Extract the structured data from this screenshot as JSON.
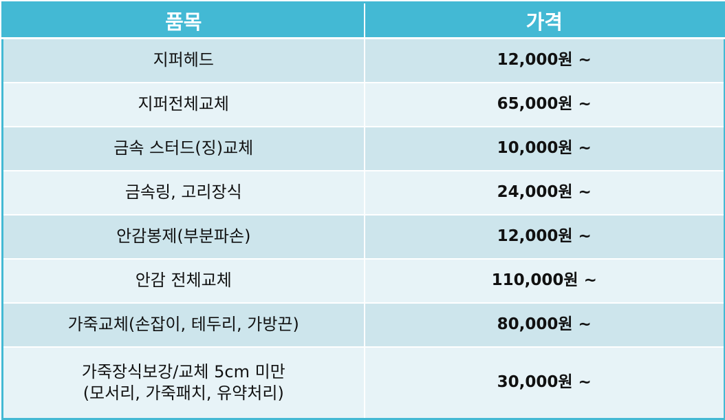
{
  "table": {
    "headers": {
      "item": "품목",
      "price": "가격"
    },
    "rows": [
      {
        "item": [
          "지퍼헤드"
        ],
        "price": "12,000원 ~"
      },
      {
        "item": [
          "지퍼전체교체"
        ],
        "price": "65,000원 ~"
      },
      {
        "item": [
          "금속 스터드(징)교체"
        ],
        "price": "10,000원 ~"
      },
      {
        "item": [
          "금속링, 고리장식"
        ],
        "price": "24,000원 ~"
      },
      {
        "item": [
          "안감봉제(부분파손)"
        ],
        "price": "12,000원 ~"
      },
      {
        "item": [
          "안감 전체교체"
        ],
        "price": "110,000원 ~"
      },
      {
        "item": [
          "가죽교체(손잡이, 테두리, 가방끈)"
        ],
        "price": "80,000원 ~"
      },
      {
        "item": [
          "가죽장식보강/교체 5cm 미만",
          "(모서리, 가죽패치, 유약처리)"
        ],
        "price": "30,000원 ~"
      }
    ]
  },
  "colors": {
    "header_background": "#43b9d4",
    "header_text": "#ffffff",
    "row_dark": "#cde5ec",
    "row_light": "#e7f3f7"
  }
}
